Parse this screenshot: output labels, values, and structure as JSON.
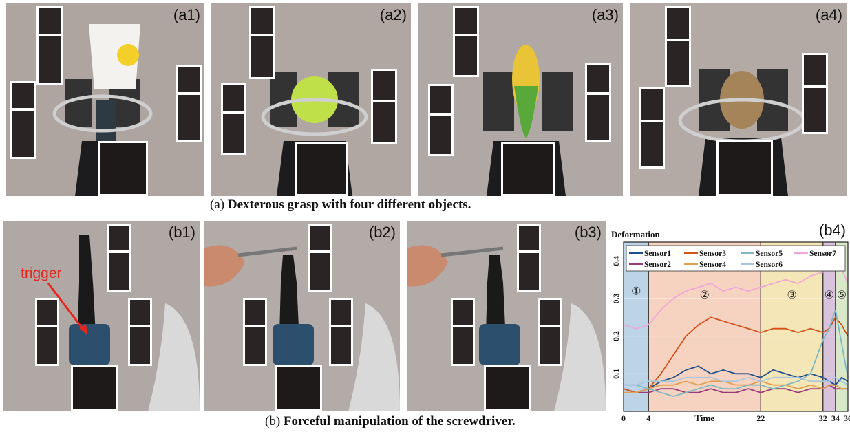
{
  "row_a": {
    "panels": [
      {
        "label": "(a1)"
      },
      {
        "label": "(a2)"
      },
      {
        "label": "(a3)"
      },
      {
        "label": "(a4)"
      }
    ],
    "caption_prefix": "(a) ",
    "caption_text": "Dexterous grasp with four different objects."
  },
  "row_b": {
    "panels": [
      {
        "label": "(b1)"
      },
      {
        "label": "(b2)"
      },
      {
        "label": "(b3)"
      }
    ],
    "trigger_label": "trigger",
    "caption_prefix": "(b) ",
    "caption_text": "Forceful manipulation of the screwdriver."
  },
  "colors": {
    "phase1": "#bcd4e6",
    "phase2": "#f6d2c0",
    "phase3": "#f4e6b6",
    "phase4": "#d9c2dc",
    "phase5": "#d9e8c8",
    "trigger": "#e8241b"
  },
  "chart_data": {
    "type": "line",
    "panel_label": "(b4)",
    "title": "Deformation",
    "xlabel": "Time",
    "ylabel": "",
    "xlim": [
      0,
      36
    ],
    "ylim": [
      0,
      0.45
    ],
    "x_ticks": [
      "0",
      "4",
      "22",
      "32",
      "34",
      "36"
    ],
    "y_ticks": [
      "0.1",
      "0.2",
      "0.3",
      "0.4"
    ],
    "phases": [
      {
        "label": "①",
        "start": 0,
        "end": 4,
        "color": "#bcd4e6"
      },
      {
        "label": "②",
        "start": 4,
        "end": 22,
        "color": "#f6d2c0"
      },
      {
        "label": "③",
        "start": 22,
        "end": 32,
        "color": "#f4e6b6"
      },
      {
        "label": "④",
        "start": 32,
        "end": 34,
        "color": "#d9c2dc"
      },
      {
        "label": "⑤",
        "start": 34,
        "end": 36,
        "color": "#d9e8c8"
      }
    ],
    "x": [
      0,
      2,
      4,
      6,
      8,
      10,
      12,
      14,
      16,
      18,
      20,
      22,
      24,
      26,
      28,
      30,
      32,
      33,
      34,
      35,
      36
    ],
    "series": [
      {
        "name": "Sensor1",
        "color": "#1f4e8c",
        "values": [
          0.06,
          0.05,
          0.06,
          0.08,
          0.09,
          0.11,
          0.12,
          0.1,
          0.11,
          0.1,
          0.1,
          0.09,
          0.11,
          0.1,
          0.09,
          0.1,
          0.09,
          0.08,
          0.07,
          0.09,
          0.08
        ]
      },
      {
        "name": "Sensor2",
        "color": "#9a3a7a",
        "values": [
          0.06,
          0.05,
          0.05,
          0.06,
          0.06,
          0.05,
          0.05,
          0.06,
          0.05,
          0.05,
          0.06,
          0.05,
          0.06,
          0.06,
          0.05,
          0.06,
          0.06,
          0.07,
          0.06,
          0.06,
          0.06
        ]
      },
      {
        "name": "Sensor3",
        "color": "#d2521a",
        "values": [
          0.06,
          0.05,
          0.06,
          0.1,
          0.15,
          0.2,
          0.23,
          0.25,
          0.24,
          0.23,
          0.22,
          0.21,
          0.22,
          0.22,
          0.21,
          0.22,
          0.21,
          0.22,
          0.25,
          0.23,
          0.2
        ]
      },
      {
        "name": "Sensor4",
        "color": "#e0a050",
        "values": [
          0.05,
          0.05,
          0.06,
          0.07,
          0.07,
          0.08,
          0.07,
          0.08,
          0.08,
          0.07,
          0.07,
          0.08,
          0.07,
          0.07,
          0.06,
          0.07,
          0.06,
          0.07,
          0.07,
          0.06,
          0.06
        ]
      },
      {
        "name": "Sensor5",
        "color": "#7eb8c2",
        "values": [
          0.07,
          0.07,
          0.06,
          0.05,
          0.04,
          0.05,
          0.06,
          0.07,
          0.06,
          0.06,
          0.07,
          0.07,
          0.06,
          0.07,
          0.08,
          0.1,
          0.19,
          0.22,
          0.27,
          0.18,
          0.09
        ]
      },
      {
        "name": "Sensor6",
        "color": "#a9c6de",
        "values": [
          0.07,
          0.07,
          0.08,
          0.08,
          0.08,
          0.09,
          0.09,
          0.09,
          0.08,
          0.08,
          0.09,
          0.08,
          0.09,
          0.09,
          0.09,
          0.08,
          0.08,
          0.08,
          0.09,
          0.08,
          0.07
        ]
      },
      {
        "name": "Sensor7",
        "color": "#f0a6d8",
        "values": [
          0.23,
          0.22,
          0.23,
          0.27,
          0.3,
          0.32,
          0.33,
          0.34,
          0.32,
          0.33,
          0.32,
          0.33,
          0.34,
          0.35,
          0.34,
          0.36,
          0.37,
          0.38,
          0.39,
          0.38,
          0.34
        ]
      }
    ],
    "legend_position": "top",
    "grid": true
  }
}
